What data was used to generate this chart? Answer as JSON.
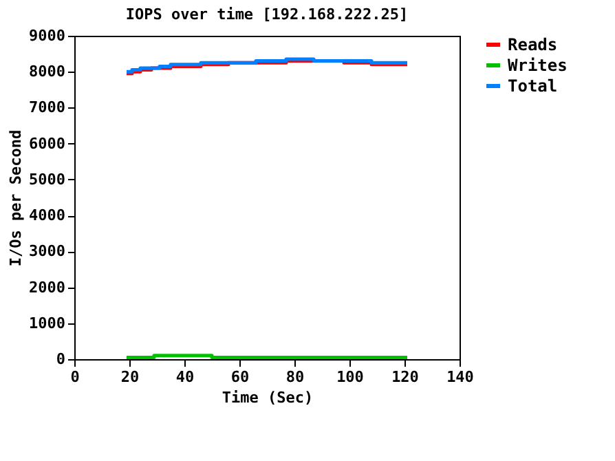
{
  "chart_data": {
    "type": "step",
    "title": "IOPS over time [192.168.222.25]",
    "xlabel": "Time (Sec)",
    "ylabel": "I/Os per Second",
    "xlim": [
      0,
      140
    ],
    "xticks": [
      0,
      20,
      40,
      60,
      80,
      100,
      120,
      140
    ],
    "ylim": [
      0,
      9000
    ],
    "yticks": [
      0,
      1000,
      2000,
      3000,
      4000,
      5000,
      6000,
      7000,
      8000,
      9000
    ],
    "grid": false,
    "legend": "top right",
    "marker": "none",
    "line_style": "solid",
    "series": [
      {
        "name": "Reads",
        "color": "#ff0000",
        "x": [
          19,
          21,
          24,
          28,
          31,
          35,
          38,
          46,
          56,
          66,
          77,
          87,
          98,
          108,
          121
        ],
        "values": [
          7950,
          8000,
          8050,
          8100,
          8100,
          8150,
          8150,
          8200,
          8250,
          8250,
          8300,
          8300,
          8250,
          8200,
          8200
        ]
      },
      {
        "name": "Writes",
        "color": "#00c000",
        "x": [
          19,
          29,
          50,
          121
        ],
        "values": [
          50,
          100,
          50,
          50
        ]
      },
      {
        "name": "Total",
        "color": "#0080ff",
        "x": [
          19,
          21,
          24,
          28,
          31,
          35,
          38,
          46,
          56,
          66,
          77,
          87,
          98,
          108,
          121
        ],
        "values": [
          8000,
          8050,
          8100,
          8100,
          8150,
          8200,
          8200,
          8250,
          8250,
          8300,
          8350,
          8300,
          8300,
          8250,
          8250
        ]
      }
    ]
  }
}
